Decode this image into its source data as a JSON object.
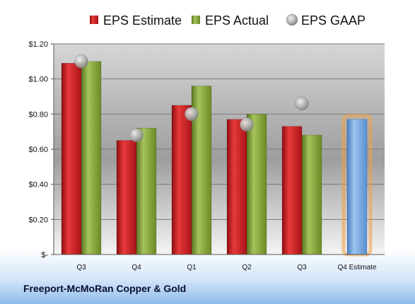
{
  "company": "Freeport-McMoRan Copper & Gold",
  "colors": {
    "estimate": "#c0181c",
    "actual": "#7f9d2e",
    "gaap": "#a8a8a8",
    "forecast": "#6e9fd9",
    "forecast_glow": "#f0a040"
  },
  "chart_data": {
    "type": "bar",
    "categories": [
      "Q3",
      "Q4",
      "Q1",
      "Q2",
      "Q3",
      "Q4 Estimate"
    ],
    "series": [
      {
        "name": "EPS Estimate",
        "values": [
          1.09,
          0.65,
          0.85,
          0.77,
          0.73,
          null
        ]
      },
      {
        "name": "EPS Actual",
        "values": [
          1.1,
          0.72,
          0.96,
          0.8,
          0.68,
          null
        ]
      },
      {
        "name": "EPS GAAP",
        "type": "scatter",
        "values": [
          1.1,
          0.68,
          0.8,
          0.74,
          0.86,
          null
        ]
      },
      {
        "name": "",
        "values": [
          null,
          null,
          null,
          null,
          null,
          0.77
        ]
      }
    ],
    "ylim": [
      0,
      1.2
    ],
    "yticks": [
      0,
      0.2,
      0.4,
      0.6,
      0.8,
      1.0,
      1.2
    ],
    "ytick_labels": [
      "$-",
      "$0.20",
      "$0.40",
      "$0.60",
      "$0.80",
      "$1.00",
      "$1.20"
    ],
    "legend_position": "top",
    "grid": true
  }
}
